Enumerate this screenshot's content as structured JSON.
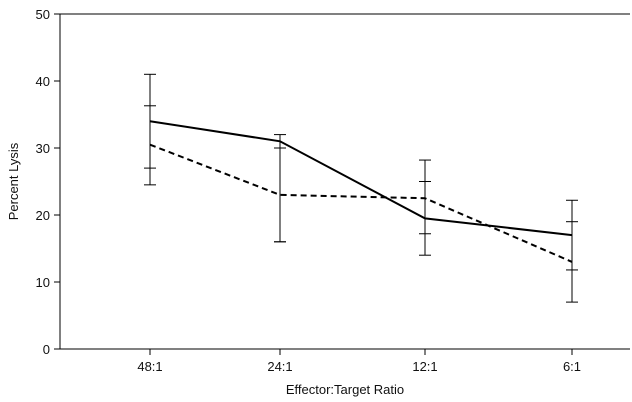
{
  "chart_data": {
    "type": "line",
    "title": "",
    "xlabel": "Effector:Target Ratio",
    "ylabel": "Percent Lysis",
    "categories": [
      "48:1",
      "24:1",
      "12:1",
      "6:1"
    ],
    "ylim": [
      0,
      50
    ],
    "yticks": [
      "0",
      "10",
      "20",
      "30",
      "40",
      "50"
    ],
    "grid": false,
    "legend": "none",
    "series": [
      {
        "style": "solid",
        "color": "#000000",
        "values": [
          34,
          31,
          19.5,
          17
        ],
        "error_low": [
          24.5,
          16,
          14,
          11.8
        ],
        "error_high": [
          41,
          32,
          25,
          22.2
        ]
      },
      {
        "style": "dashed",
        "color": "#000000",
        "values": [
          30.5,
          23,
          22.5,
          13
        ],
        "error_low": [
          27,
          16,
          17.2,
          7
        ],
        "error_high": [
          36.3,
          30,
          28.2,
          19
        ]
      }
    ]
  }
}
